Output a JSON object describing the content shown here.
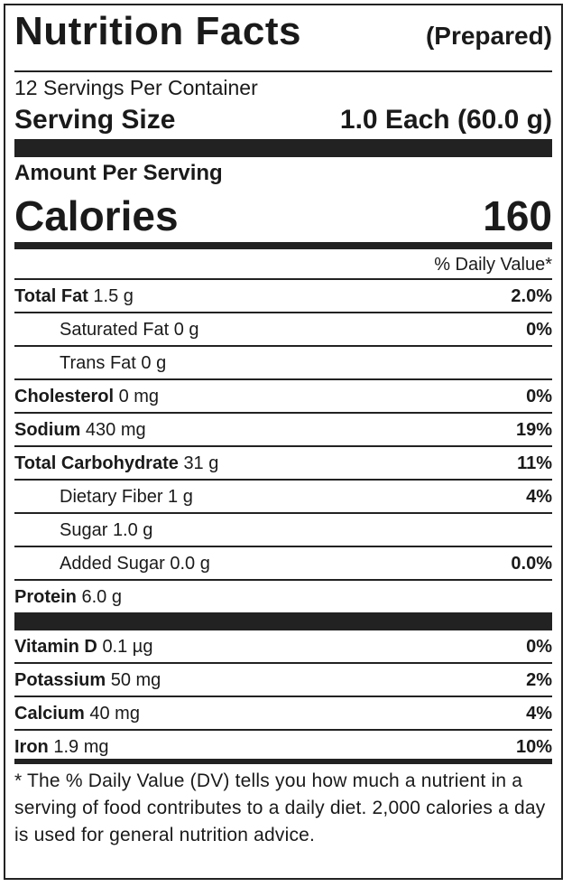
{
  "header": {
    "title": "Nutrition Facts",
    "subtitle": "(Prepared)"
  },
  "servings": "12 Servings Per Container",
  "serving_size": {
    "label": "Serving Size",
    "value": "1.0 Each (60.0 g)"
  },
  "amount_per_serving": "Amount Per Serving",
  "calories": {
    "label": "Calories",
    "value": "160"
  },
  "daily_value_header": "% Daily Value*",
  "nutrients": [
    {
      "name": "Total Fat",
      "amount": "1.5 g",
      "dv": "2.0%",
      "sub": [
        {
          "name": "Saturated Fat",
          "amount": "0 g",
          "dv": "0%"
        },
        {
          "name": "Trans Fat",
          "amount": "0 g"
        }
      ]
    },
    {
      "name": "Cholesterol",
      "amount": "0 mg",
      "dv": "0%"
    },
    {
      "name": "Sodium",
      "amount": "430 mg",
      "dv": "19%"
    },
    {
      "name": "Total Carbohydrate",
      "amount": "31 g",
      "dv": "11%",
      "sub": [
        {
          "name": "Dietary Fiber",
          "amount": "1 g",
          "dv": "4%"
        },
        {
          "name": "Sugar",
          "amount": "1.0 g"
        },
        {
          "name": "Added Sugar",
          "amount": "0.0 g",
          "dv": "0.0%"
        }
      ]
    },
    {
      "name": "Protein",
      "amount": "6.0 g"
    }
  ],
  "vitamins": [
    {
      "name": "Vitamin D",
      "amount": "0.1 µg",
      "dv": "0%"
    },
    {
      "name": "Potassium",
      "amount": "50 mg",
      "dv": "2%"
    },
    {
      "name": "Calcium",
      "amount": "40 mg",
      "dv": "4%"
    },
    {
      "name": "Iron",
      "amount": "1.9 mg",
      "dv": "10%"
    }
  ],
  "footnote": "* The % Daily Value (DV) tells you how much a nutrient in a serving of food contributes to a daily diet. 2,000 calories a day is used for general nutrition advice."
}
